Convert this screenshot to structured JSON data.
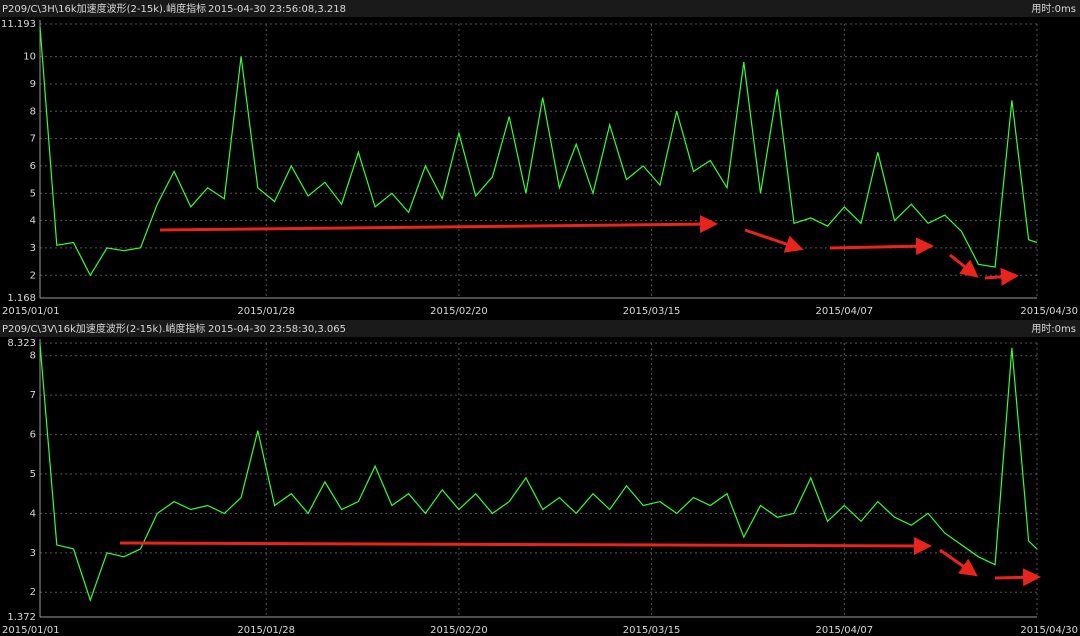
{
  "chart_data": [
    {
      "type": "line",
      "title": "P209/C\\3H\\16k加速度波形(2-15k).峭度指标",
      "subtitle": "2015-04-30 23:56:08,3.218",
      "annotation": "用时:0ms",
      "color": "#33ff33",
      "x": [
        "2015/01/01",
        "2015/01/03",
        "2015/01/05",
        "2015/01/07",
        "2015/01/09",
        "2015/01/11",
        "2015/01/13",
        "2015/01/15",
        "2015/01/17",
        "2015/01/19",
        "2015/01/21",
        "2015/01/23",
        "2015/01/25",
        "2015/01/27",
        "2015/01/29",
        "2015/01/31",
        "2015/02/02",
        "2015/02/04",
        "2015/02/06",
        "2015/02/08",
        "2015/02/10",
        "2015/02/12",
        "2015/02/14",
        "2015/02/16",
        "2015/02/18",
        "2015/02/20",
        "2015/02/22",
        "2015/02/24",
        "2015/02/26",
        "2015/02/28",
        "2015/03/02",
        "2015/03/04",
        "2015/03/06",
        "2015/03/08",
        "2015/03/10",
        "2015/03/12",
        "2015/03/14",
        "2015/03/16",
        "2015/03/18",
        "2015/03/20",
        "2015/03/22",
        "2015/03/24",
        "2015/03/26",
        "2015/03/28",
        "2015/03/30",
        "2015/04/01",
        "2015/04/03",
        "2015/04/05",
        "2015/04/07",
        "2015/04/09",
        "2015/04/11",
        "2015/04/13",
        "2015/04/15",
        "2015/04/17",
        "2015/04/19",
        "2015/04/21",
        "2015/04/23",
        "2015/04/25",
        "2015/04/27",
        "2015/04/29",
        "2015/04/30"
      ],
      "values": [
        11.1,
        3.1,
        3.2,
        2.0,
        3.0,
        2.9,
        3.0,
        4.6,
        5.8,
        4.5,
        5.2,
        4.8,
        10.0,
        5.2,
        4.7,
        6.0,
        4.9,
        5.4,
        4.6,
        6.5,
        4.5,
        5.0,
        4.3,
        6.0,
        4.8,
        7.2,
        4.9,
        5.6,
        7.8,
        5.0,
        8.5,
        5.2,
        6.8,
        5.0,
        7.5,
        5.5,
        6.0,
        5.3,
        8.0,
        5.8,
        6.2,
        5.2,
        9.8,
        5.0,
        8.8,
        3.9,
        4.1,
        3.8,
        4.5,
        3.9,
        6.5,
        4.0,
        4.6,
        3.9,
        4.2,
        3.6,
        2.4,
        2.3,
        8.4,
        3.3,
        3.2
      ],
      "xlim": [
        "2015/01/01",
        "2015/04/30"
      ],
      "xticks": [
        "2015/01/01",
        "2015/01/28",
        "2015/02/20",
        "2015/03/15",
        "2015/04/07",
        "2015/04/30"
      ],
      "ylim": [
        1.168,
        11.193
      ],
      "yticks": [
        1.168,
        2,
        3,
        4,
        5,
        6,
        7,
        8,
        9,
        10,
        11.193
      ],
      "grid": true
    },
    {
      "type": "line",
      "title": "P209/C\\3V\\16k加速度波形(2-15k).峭度指标",
      "subtitle": "2015-04-30 23:58:30,3.065",
      "annotation": "用时:0ms",
      "color": "#33ff33",
      "x": [
        "2015/01/01",
        "2015/01/03",
        "2015/01/05",
        "2015/01/07",
        "2015/01/09",
        "2015/01/11",
        "2015/01/13",
        "2015/01/15",
        "2015/01/17",
        "2015/01/19",
        "2015/01/21",
        "2015/01/23",
        "2015/01/25",
        "2015/01/27",
        "2015/01/29",
        "2015/01/31",
        "2015/02/02",
        "2015/02/04",
        "2015/02/06",
        "2015/02/08",
        "2015/02/10",
        "2015/02/12",
        "2015/02/14",
        "2015/02/16",
        "2015/02/18",
        "2015/02/20",
        "2015/02/22",
        "2015/02/24",
        "2015/02/26",
        "2015/02/28",
        "2015/03/02",
        "2015/03/04",
        "2015/03/06",
        "2015/03/08",
        "2015/03/10",
        "2015/03/12",
        "2015/03/14",
        "2015/03/16",
        "2015/03/18",
        "2015/03/20",
        "2015/03/22",
        "2015/03/24",
        "2015/03/26",
        "2015/03/28",
        "2015/03/30",
        "2015/04/01",
        "2015/04/03",
        "2015/04/05",
        "2015/04/07",
        "2015/04/09",
        "2015/04/11",
        "2015/04/13",
        "2015/04/15",
        "2015/04/17",
        "2015/04/19",
        "2015/04/21",
        "2015/04/23",
        "2015/04/25",
        "2015/04/27",
        "2015/04/29",
        "2015/04/30"
      ],
      "values": [
        8.3,
        3.2,
        3.1,
        1.8,
        3.0,
        2.9,
        3.1,
        4.0,
        4.3,
        4.1,
        4.2,
        4.0,
        4.4,
        6.1,
        4.2,
        4.5,
        4.0,
        4.8,
        4.1,
        4.3,
        5.2,
        4.2,
        4.5,
        4.0,
        4.6,
        4.1,
        4.5,
        4.0,
        4.3,
        4.9,
        4.1,
        4.4,
        4.0,
        4.5,
        4.1,
        4.7,
        4.2,
        4.3,
        4.0,
        4.4,
        4.2,
        4.5,
        3.4,
        4.2,
        3.9,
        4.0,
        4.9,
        3.8,
        4.2,
        3.8,
        4.3,
        3.9,
        3.7,
        4.0,
        3.5,
        3.2,
        2.9,
        2.7,
        8.2,
        3.3,
        3.1
      ],
      "xlim": [
        "2015/01/01",
        "2015/04/30"
      ],
      "xticks": [
        "2015/01/01",
        "2015/01/28",
        "2015/02/20",
        "2015/03/15",
        "2015/04/07",
        "2015/04/30"
      ],
      "ylim": [
        1.372,
        8.323
      ],
      "yticks": [
        1.372,
        2,
        3,
        4,
        5,
        6,
        7,
        8,
        8.323
      ],
      "grid": true
    }
  ]
}
